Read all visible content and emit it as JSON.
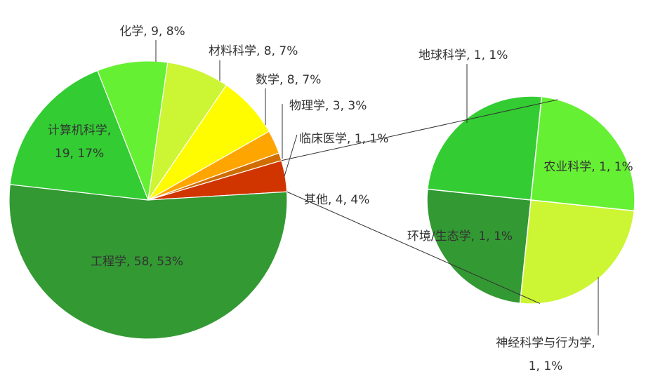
{
  "chart_data": [
    {
      "type": "pie",
      "segments": [
        {
          "name": "化学",
          "value": 9,
          "percent": "8%",
          "label": "化学, 9, 8%",
          "color": "#66f033"
        },
        {
          "name": "材料科学",
          "value": 8,
          "percent": "7%",
          "label": "材料科学, 8, 7%",
          "color": "#ccf533"
        },
        {
          "name": "数学",
          "value": 8,
          "percent": "7%",
          "label": "数学, 8, 7%",
          "color": "#fffc00"
        },
        {
          "name": "物理学",
          "value": 3,
          "percent": "3%",
          "label": "物理学, 3, 3%",
          "color": "#ffa500"
        },
        {
          "name": "临床医学",
          "value": 1,
          "percent": "1%",
          "label": "临床医学, 1, 1%",
          "color": "#d06d00"
        },
        {
          "name": "其他",
          "value": 4,
          "percent": "4%",
          "label": "其他, 4, 4%",
          "color": "#d03500"
        },
        {
          "name": "工程学",
          "value": 58,
          "percent": "53%",
          "label": "工程学, 58, 53%",
          "color": "#339933"
        },
        {
          "name": "计算机科学",
          "value": 19,
          "percent": "17%",
          "label_lines": [
            "计算机科学,",
            "19, 17%"
          ],
          "color": "#33cc33"
        }
      ]
    },
    {
      "type": "pie",
      "note_of": "其他",
      "segments": [
        {
          "name": "地球科学",
          "value": 1,
          "percent": "1%",
          "label": "地球科学, 1, 1%",
          "color": "#33cc33"
        },
        {
          "name": "农业科学",
          "value": 1,
          "percent": "1%",
          "label": "农业科学, 1, 1%",
          "color": "#66f033"
        },
        {
          "name": "神经科学与行为学",
          "value": 1,
          "percent": "1%",
          "label_lines": [
            "神经科学与行为学,",
            "1, 1%"
          ],
          "color": "#ccf533"
        },
        {
          "name": "环境/生态学",
          "value": 1,
          "percent": "1%",
          "label": "环境/生态学, 1, 1%",
          "color": "#339933"
        }
      ]
    }
  ]
}
